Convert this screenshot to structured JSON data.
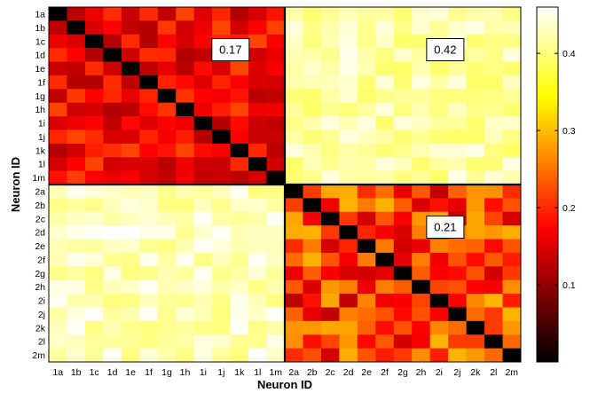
{
  "chart_data": {
    "type": "heatmap",
    "xlabel": "Neuron ID",
    "ylabel": "Neuron ID",
    "labels": [
      "1a",
      "1b",
      "1c",
      "1d",
      "1e",
      "1f",
      "1g",
      "1h",
      "1i",
      "1j",
      "1k",
      "1l",
      "1m",
      "2a",
      "2b",
      "2c",
      "2d",
      "2e",
      "2f",
      "2g",
      "2h",
      "2i",
      "2j",
      "2k",
      "2l",
      "2m"
    ],
    "colormap": "hot",
    "clim": [
      0,
      0.46
    ],
    "colorbar_ticks": [
      0.1,
      0.2,
      0.3,
      0.4
    ],
    "colorbar_tick_labels": [
      "0.1",
      "0.2",
      "0.3",
      "0.4"
    ],
    "colorbar_location": "right",
    "blocks": [
      {
        "rows": "1a-1m",
        "cols": "1a-1m",
        "mean": 0.17
      },
      {
        "rows": "1a-1m",
        "cols": "2a-2m",
        "mean": 0.42
      },
      {
        "rows": "2a-2m",
        "cols": "1a-1m",
        "mean": 0.43
      },
      {
        "rows": "2a-2m",
        "cols": "2a-2m",
        "mean": 0.21
      }
    ],
    "diagonal_value": 0,
    "annotations": [
      {
        "text": "0.17",
        "block": "1-1"
      },
      {
        "text": "0.42",
        "block": "1-2"
      },
      {
        "text": "0.21",
        "block": "2-2"
      }
    ]
  }
}
